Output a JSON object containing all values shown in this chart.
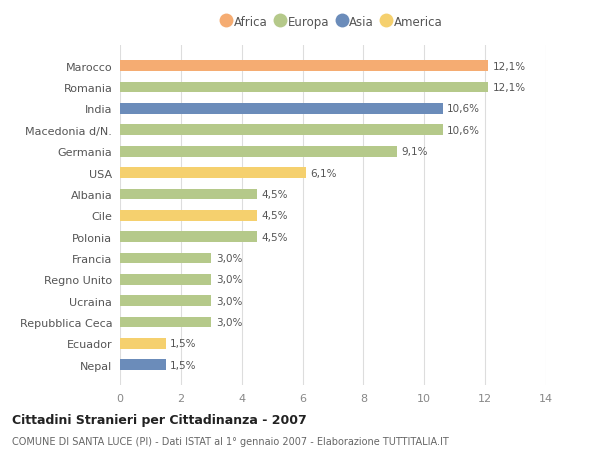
{
  "categories": [
    "Nepal",
    "Ecuador",
    "Repubblica Ceca",
    "Ucraina",
    "Regno Unito",
    "Francia",
    "Polonia",
    "Cile",
    "Albania",
    "USA",
    "Germania",
    "Macedonia d/N.",
    "India",
    "Romania",
    "Marocco"
  ],
  "values": [
    1.5,
    1.5,
    3.0,
    3.0,
    3.0,
    3.0,
    4.5,
    4.5,
    4.5,
    6.1,
    9.1,
    10.6,
    10.6,
    12.1,
    12.1
  ],
  "labels": [
    "1,5%",
    "1,5%",
    "3,0%",
    "3,0%",
    "3,0%",
    "3,0%",
    "4,5%",
    "4,5%",
    "4,5%",
    "6,1%",
    "9,1%",
    "10,6%",
    "10,6%",
    "12,1%",
    "12,1%"
  ],
  "colors": [
    "#6b8cba",
    "#f5d06e",
    "#b5c98a",
    "#b5c98a",
    "#b5c98a",
    "#b5c98a",
    "#b5c98a",
    "#f5d06e",
    "#b5c98a",
    "#f5d06e",
    "#b5c98a",
    "#b5c98a",
    "#6b8cba",
    "#b5c98a",
    "#f5ac72"
  ],
  "legend_labels": [
    "Africa",
    "Europa",
    "Asia",
    "America"
  ],
  "legend_colors": [
    "#f5ac72",
    "#b5c98a",
    "#6b8cba",
    "#f5d06e"
  ],
  "title": "Cittadini Stranieri per Cittadinanza - 2007",
  "subtitle": "COMUNE DI SANTA LUCE (PI) - Dati ISTAT al 1° gennaio 2007 - Elaborazione TUTTITALIA.IT",
  "xlim": [
    0,
    14
  ],
  "xticks": [
    0,
    2,
    4,
    6,
    8,
    10,
    12,
    14
  ],
  "background_color": "#ffffff",
  "grid_color": "#dddddd",
  "bar_height": 0.5
}
